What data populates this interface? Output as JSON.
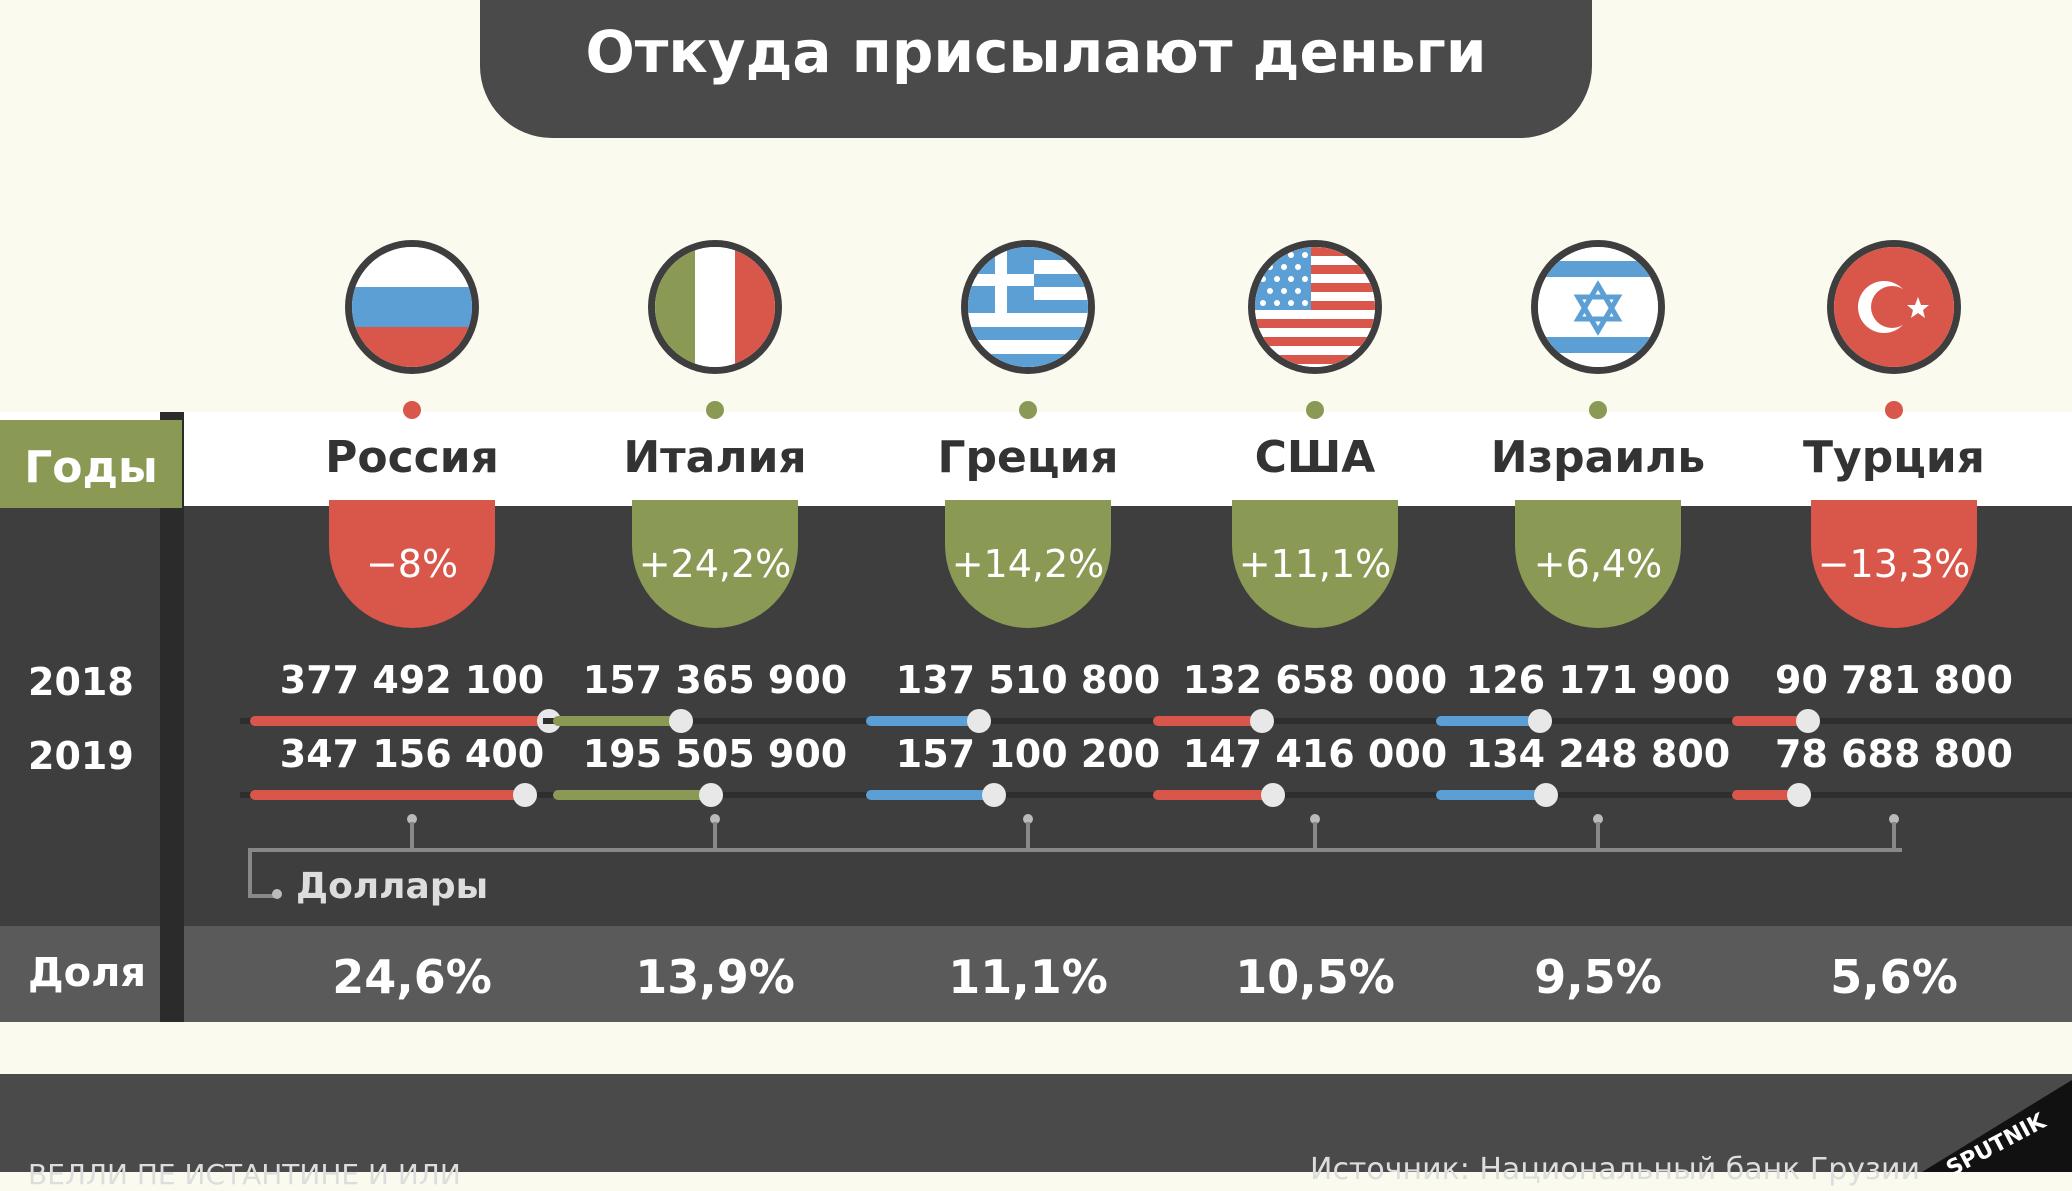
{
  "title": "Откуда присылают деньги",
  "header": {
    "years_label": "Годы",
    "share_label": "Доля",
    "unit_label": "Доллары"
  },
  "footer": {
    "source": "Источник: Национальный банк Грузии",
    "author": "ВЕЛЛИ ПЕ ИСТАНТИНЕ И ИЛИ",
    "brand": "SPUTNIK"
  },
  "colors": {
    "negative": "#d9574a",
    "positive": "#8a9a55",
    "blue": "#5b9fd5",
    "dark": "#3e3e3e"
  },
  "countries": [
    {
      "name": "Россия",
      "change": "−8%",
      "change_sign": "negative",
      "v2018": "377 492 100",
      "v2019": "347 156 400",
      "share": "24,6%",
      "flag": "russia-flag-icon",
      "bar_color": "#d9574a"
    },
    {
      "name": "Италия",
      "change": "+24,2%",
      "change_sign": "positive",
      "v2018": "157 365 900",
      "v2019": "195 505 900",
      "share": "13,9%",
      "flag": "italy-flag-icon",
      "bar_color": "#8a9a55"
    },
    {
      "name": "Греция",
      "change": "+14,2%",
      "change_sign": "positive",
      "v2018": "137 510 800",
      "v2019": "157 100 200",
      "share": "11,1%",
      "flag": "greece-flag-icon",
      "bar_color": "#5b9fd5"
    },
    {
      "name": "США",
      "change": "+11,1%",
      "change_sign": "positive",
      "v2018": "132 658 000",
      "v2019": "147 416 000",
      "share": "10,5%",
      "flag": "usa-flag-icon",
      "bar_color": "#d9574a"
    },
    {
      "name": "Израиль",
      "change": "+6,4%",
      "change_sign": "positive",
      "v2018": "126 171 900",
      "v2019": "134 248 800",
      "share": "9,5%",
      "flag": "israel-flag-icon",
      "bar_color": "#5b9fd5"
    },
    {
      "name": "Турция",
      "change": "−13,3%",
      "change_sign": "negative",
      "v2018": "90 781 800",
      "v2019": "78 688 800",
      "share": "5,6%",
      "flag": "turkey-flag-icon",
      "bar_color": "#d9574a"
    }
  ],
  "chart_data": {
    "type": "bar",
    "title": "Откуда присылают деньги",
    "categories": [
      "Россия",
      "Италия",
      "Греция",
      "США",
      "Израиль",
      "Турция"
    ],
    "series": [
      {
        "name": "2018",
        "values": [
          377492100,
          157365900,
          137510800,
          132658000,
          126171900,
          90781800
        ]
      },
      {
        "name": "2019",
        "values": [
          347156400,
          195505900,
          157100200,
          147416000,
          134248800,
          78688800
        ]
      }
    ],
    "change_labels": [
      "−8%",
      "+24,2%",
      "+14,2%",
      "+11,1%",
      "+6,4%",
      "−13,3%"
    ],
    "share_labels": [
      "24,6%",
      "13,9%",
      "11,1%",
      "10,5%",
      "9,5%",
      "5,6%"
    ],
    "ylabel": "Доллары"
  }
}
